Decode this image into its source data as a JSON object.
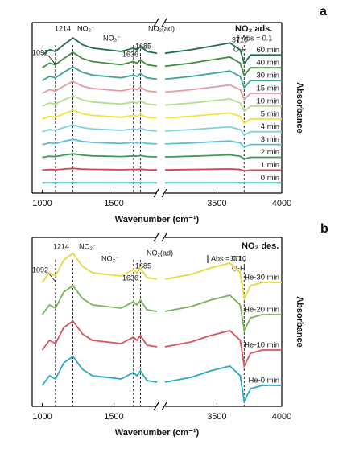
{
  "chart_data": [
    {
      "type": "line",
      "panel_label": "a",
      "title": "NO₂ ads.",
      "scale_label": "Abs = 0.1",
      "xlabel": "Wavenumber (cm⁻¹)",
      "ylabel": "Absorbance",
      "xlim": [
        930,
        4000
      ],
      "xbreak": [
        1800,
        3100
      ],
      "xticks": [
        1000,
        1500,
        3500,
        4000
      ],
      "ylim": [
        0,
        100
      ],
      "x": [
        1000,
        1050,
        1092,
        1150,
        1214,
        1280,
        1350,
        1450,
        1550,
        1636,
        1660,
        1685,
        1730,
        1800,
        2450,
        3100,
        3300,
        3450,
        3600,
        3680,
        3710,
        3760,
        3850,
        4000
      ],
      "peaks": [
        1092,
        1214,
        1636,
        1685,
        3710
      ],
      "annotations": [
        "NO₂⁻",
        "NO₃⁻",
        "NO₂(ad)",
        "O-H"
      ],
      "series": [
        {
          "name": "0 min",
          "color": "#2aa9b9",
          "values": [
            6,
            6,
            6,
            6,
            6,
            6,
            6,
            6,
            6,
            6,
            6,
            6,
            6,
            6,
            null,
            6,
            6,
            6,
            6,
            6,
            6,
            6,
            6,
            6
          ]
        },
        {
          "name": "1 min",
          "color": "#d9434e",
          "values": [
            13.5,
            13.8,
            13.7,
            14.1,
            14.5,
            14.1,
            13.9,
            13.8,
            13.7,
            13.9,
            13.8,
            14,
            13.7,
            13.6,
            null,
            13.6,
            13.8,
            14,
            14.2,
            13.8,
            13,
            13.5,
            13.5,
            13.5
          ]
        },
        {
          "name": "2 min",
          "color": "#3d9b54",
          "values": [
            21,
            21.6,
            21.4,
            22.2,
            23,
            22.2,
            21.8,
            21.6,
            21.4,
            21.8,
            21.6,
            22,
            21.4,
            21.2,
            null,
            21.2,
            21.6,
            22,
            22.4,
            21.6,
            20,
            21,
            21,
            21
          ]
        },
        {
          "name": "3 min",
          "color": "#58c0d8",
          "values": [
            28.5,
            29.4,
            29.1,
            30.3,
            31.5,
            30.3,
            29.7,
            29.4,
            29.1,
            29.7,
            29.4,
            30,
            29.1,
            28.8,
            null,
            28.8,
            29.4,
            30,
            30.6,
            29.4,
            27,
            28.5,
            28.5,
            28.5
          ]
        },
        {
          "name": "4 min",
          "color": "#7fd3dc",
          "values": [
            36,
            37.2,
            36.8,
            38.4,
            40,
            38.4,
            37.6,
            37.2,
            36.8,
            37.6,
            37.2,
            38,
            36.8,
            36.4,
            null,
            36.4,
            37.2,
            38,
            38.8,
            37.2,
            34,
            36,
            36,
            36
          ]
        },
        {
          "name": "5 min",
          "color": "#f0e33a",
          "values": [
            43.5,
            45,
            44.5,
            46.5,
            48.5,
            46.5,
            45.5,
            45,
            44.5,
            45.5,
            45,
            46,
            44.5,
            44,
            null,
            44,
            45,
            46,
            47,
            45,
            41,
            43.5,
            43.5,
            43.5
          ]
        },
        {
          "name": "10 min",
          "color": "#b6dc8c",
          "values": [
            51,
            52.8,
            52.2,
            54.6,
            57,
            54.6,
            53.4,
            52.8,
            52.2,
            53.4,
            52.8,
            54,
            52.2,
            51.6,
            null,
            51.6,
            52.8,
            54,
            55.2,
            52.8,
            48,
            51,
            51,
            51
          ]
        },
        {
          "name": "15 min",
          "color": "#e49aa3",
          "values": [
            58.5,
            60.6,
            59.9,
            62.7,
            65.5,
            62.7,
            61.3,
            60.6,
            59.9,
            61.3,
            60.6,
            62,
            59.9,
            59.2,
            null,
            59.2,
            60.6,
            62,
            63.4,
            60.6,
            55,
            58.5,
            58.5,
            58.5
          ]
        },
        {
          "name": "30 min",
          "color": "#3aa596",
          "values": [
            66,
            68.4,
            67.6,
            70.8,
            74,
            70.8,
            69.2,
            68.4,
            67.6,
            69.2,
            68.4,
            70,
            67.6,
            66.8,
            null,
            66.8,
            68.4,
            70,
            71.6,
            68.4,
            62,
            66,
            66,
            66
          ]
        },
        {
          "name": "40 min",
          "color": "#3e8e3e",
          "values": [
            73.5,
            76.2,
            75.3,
            78.9,
            82.5,
            78.9,
            77.1,
            76.2,
            75.3,
            77.1,
            76.2,
            78,
            75.3,
            74.4,
            null,
            74.4,
            76.2,
            78,
            79.8,
            76.2,
            69,
            73.5,
            73.5,
            73.5
          ]
        },
        {
          "name": "60 min",
          "color": "#1f6b4c",
          "values": [
            81,
            84,
            83,
            87,
            91,
            87,
            85,
            84,
            83,
            85,
            84,
            86,
            83,
            82,
            null,
            82,
            84,
            86,
            88,
            84,
            76,
            81,
            81,
            81
          ]
        }
      ]
    },
    {
      "type": "line",
      "panel_label": "b",
      "title": "NO₂ des.",
      "scale_label": "Abs = 0.1",
      "xlabel": "Wavenumber (cm⁻¹)",
      "ylabel": "Absorbance",
      "xlim": [
        930,
        4000
      ],
      "xbreak": [
        1800,
        3100
      ],
      "xticks": [
        1000,
        1500,
        3500,
        4000
      ],
      "ylim": [
        -5,
        100
      ],
      "x": [
        1000,
        1050,
        1092,
        1150,
        1214,
        1280,
        1350,
        1450,
        1550,
        1636,
        1660,
        1685,
        1730,
        1800,
        2450,
        3100,
        3300,
        3450,
        3600,
        3680,
        3710,
        3760,
        3850,
        4000
      ],
      "peaks": [
        1092,
        1214,
        1636,
        1685,
        3710
      ],
      "annotations": [
        "NO₂⁻",
        "NO₃⁻",
        "NO₂(ad)",
        "O-H"
      ],
      "series": [
        {
          "name": "He-0 min",
          "color": "#2aa9c0",
          "values": [
            8,
            14,
            12,
            22,
            26,
            18,
            14,
            13,
            12,
            16,
            14,
            17,
            11,
            10,
            null,
            10,
            13,
            17,
            20,
            14,
            -2,
            6,
            8,
            8
          ]
        },
        {
          "name": "He-10 min",
          "color": "#d9535b",
          "values": [
            30,
            36,
            34,
            44,
            48,
            40,
            36,
            35,
            34,
            38,
            36,
            39,
            33,
            32,
            null,
            32,
            35,
            39,
            42,
            36,
            20,
            28,
            30,
            30
          ]
        },
        {
          "name": "He-20 min",
          "color": "#78b35a",
          "values": [
            52,
            58,
            56,
            66,
            70,
            62,
            58,
            57,
            56,
            60,
            58,
            61,
            55,
            54,
            null,
            54,
            57,
            61,
            64,
            58,
            42,
            50,
            52,
            52
          ]
        },
        {
          "name": "He-30 min",
          "color": "#e8d840",
          "values": [
            72,
            78,
            76,
            86,
            90,
            82,
            78,
            77,
            76,
            80,
            78,
            81,
            75,
            74,
            null,
            74,
            77,
            81,
            84,
            78,
            62,
            70,
            72,
            72
          ]
        }
      ]
    }
  ]
}
